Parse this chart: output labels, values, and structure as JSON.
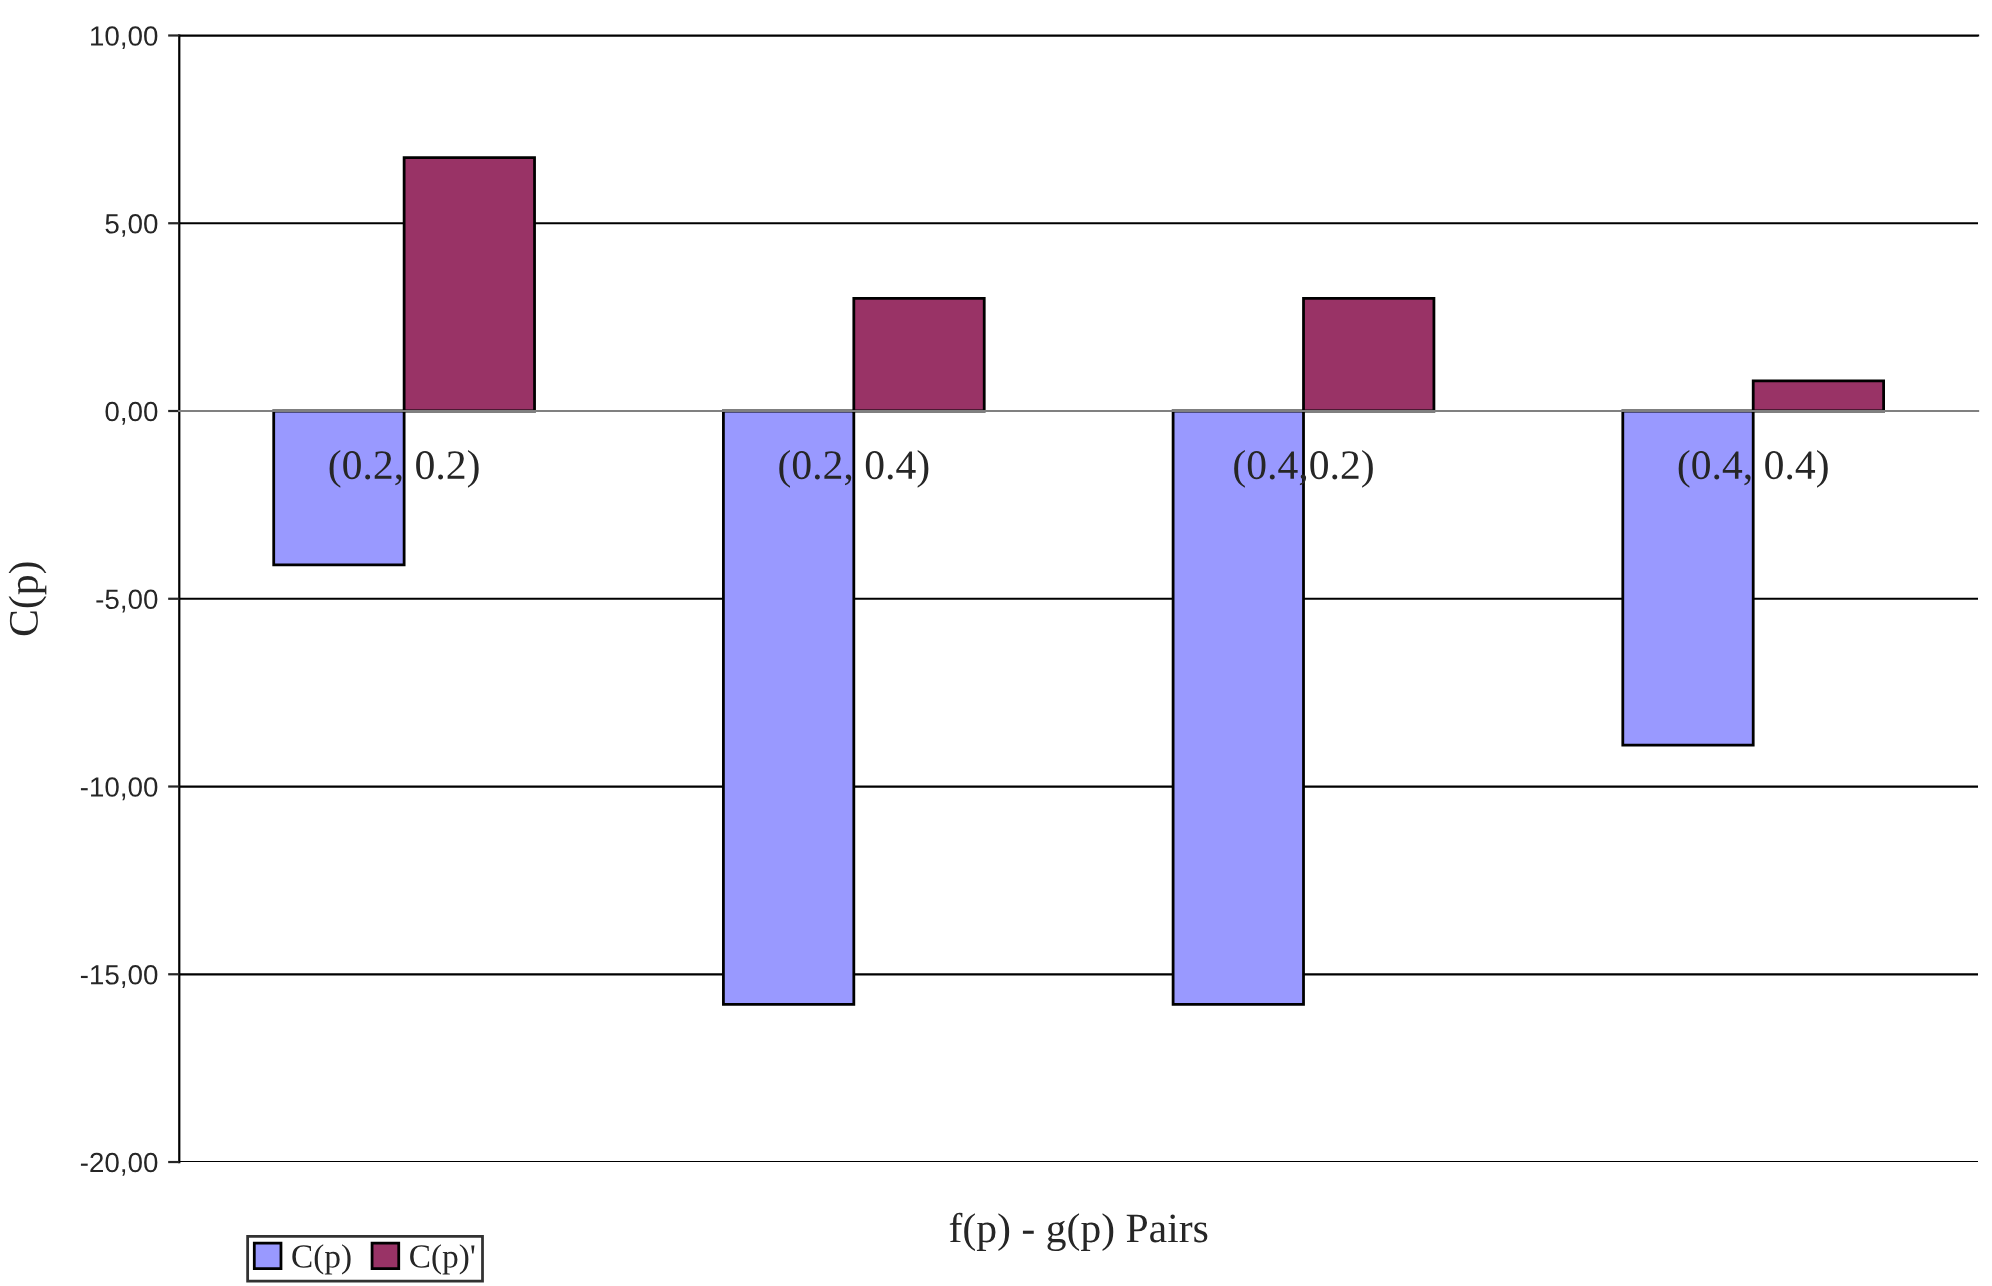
{
  "chart_data": {
    "type": "bar",
    "xlabel": "f(p) - g(p) Pairs",
    "ylabel": "C(p)",
    "categories": [
      "(0.2, 0.2)",
      "(0.2, 0.4)",
      "(0.4,0.2)",
      "(0.4, 0.4)"
    ],
    "series": [
      {
        "name": "C(p)",
        "color": "#9999ff",
        "values": [
          -4.1,
          -15.8,
          -15.8,
          -8.9
        ]
      },
      {
        "name": "C(p)'",
        "color": "#993366",
        "values": [
          6.75,
          3.0,
          3.0,
          0.8
        ]
      }
    ],
    "ylim": [
      -20,
      10
    ],
    "yticks": [
      {
        "value": -20,
        "label": "-20,00"
      },
      {
        "value": -15,
        "label": "-15,00"
      },
      {
        "value": -10,
        "label": "-10,00"
      },
      {
        "value": -5,
        "label": "-5,00"
      },
      {
        "value": 0,
        "label": "0,00"
      },
      {
        "value": 5,
        "label": "5,00"
      },
      {
        "value": 10,
        "label": "10,00"
      }
    ],
    "grid": "y",
    "legend": "bottom left"
  }
}
